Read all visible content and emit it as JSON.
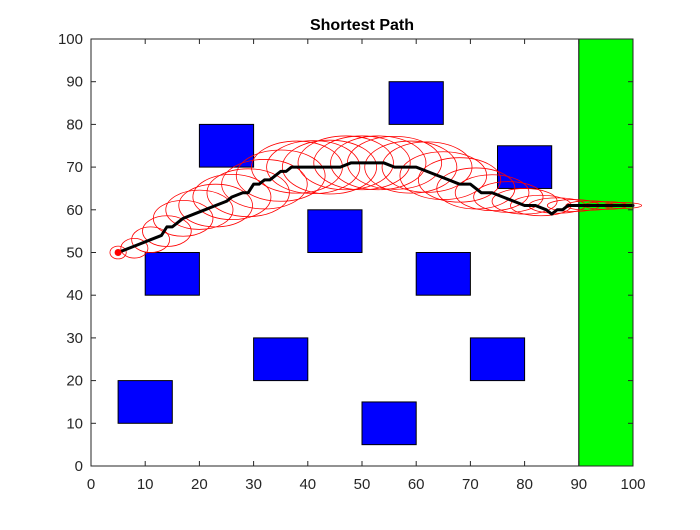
{
  "chart_data": {
    "type": "line",
    "title": "Shortest Path",
    "xlim": [
      0,
      100
    ],
    "ylim": [
      0,
      100
    ],
    "x_ticks": [
      "0",
      "10",
      "20",
      "30",
      "40",
      "50",
      "60",
      "70",
      "80",
      "90",
      "100"
    ],
    "y_ticks": [
      "0",
      "10",
      "20",
      "30",
      "40",
      "50",
      "60",
      "70",
      "80",
      "90",
      "100"
    ],
    "xlabel": "",
    "ylabel": "",
    "grid": false,
    "obstacles": [
      {
        "x": [
          10,
          20
        ],
        "y": [
          40,
          50
        ]
      },
      {
        "x": [
          5,
          15
        ],
        "y": [
          10,
          20
        ]
      },
      {
        "x": [
          20,
          30
        ],
        "y": [
          70,
          80
        ]
      },
      {
        "x": [
          30,
          40
        ],
        "y": [
          20,
          30
        ]
      },
      {
        "x": [
          40,
          50
        ],
        "y": [
          50,
          60
        ]
      },
      {
        "x": [
          50,
          60
        ],
        "y": [
          5,
          15
        ]
      },
      {
        "x": [
          55,
          65
        ],
        "y": [
          80,
          90
        ]
      },
      {
        "x": [
          60,
          70
        ],
        "y": [
          40,
          50
        ]
      },
      {
        "x": [
          70,
          80
        ],
        "y": [
          20,
          30
        ]
      },
      {
        "x": [
          75,
          85
        ],
        "y": [
          65,
          75
        ]
      }
    ],
    "goal_region": {
      "x": [
        90,
        100
      ],
      "y": [
        0,
        100
      ]
    },
    "start_point": {
      "x": 5,
      "y": 50
    },
    "path": {
      "x": [
        5,
        7,
        9,
        11,
        13,
        14,
        15,
        16,
        17,
        19,
        21,
        23,
        25,
        26,
        28,
        29,
        30,
        31,
        32,
        33,
        34,
        35,
        36,
        37,
        38,
        40,
        42,
        44,
        46,
        48,
        50,
        52,
        54,
        56,
        58,
        60,
        62,
        64,
        66,
        68,
        70,
        72,
        74,
        76,
        78,
        80,
        82,
        84,
        85,
        86,
        87,
        88,
        89,
        90,
        92,
        94,
        96,
        98,
        100
      ],
      "y": [
        50,
        51,
        52,
        53,
        54,
        56,
        56,
        57,
        58,
        59,
        60,
        61,
        62,
        63,
        64,
        64,
        66,
        66,
        67,
        67,
        68,
        69,
        69,
        70,
        70,
        70,
        70,
        70,
        70,
        71,
        71,
        71,
        71,
        70,
        70,
        70,
        69,
        68,
        67,
        66,
        66,
        64,
        64,
        63,
        62,
        61,
        61,
        60,
        59,
        60,
        60,
        61,
        61,
        61,
        61,
        61,
        61,
        61,
        61
      ]
    },
    "uncertainty_radius": {
      "x": [
        5,
        8,
        11,
        14,
        17,
        20,
        23,
        26,
        29,
        32,
        35,
        38,
        41,
        44,
        47,
        50,
        53,
        56,
        59,
        62,
        65,
        68,
        71,
        74,
        77,
        80,
        83,
        86,
        89,
        92,
        95,
        98
      ],
      "y": [
        50,
        51,
        53,
        55,
        58,
        60,
        61,
        63,
        64,
        66,
        68,
        70,
        70,
        70,
        71,
        71,
        71,
        71,
        70,
        70,
        68,
        67,
        65,
        64,
        63,
        62,
        61,
        61,
        61,
        61,
        61,
        61
      ],
      "rx": [
        1.5,
        2.5,
        3.5,
        4.5,
        5.5,
        6.2,
        6.8,
        7.2,
        7.6,
        7.9,
        8.2,
        8.4,
        8.6,
        8.7,
        8.8,
        8.9,
        8.8,
        8.7,
        8.5,
        8.3,
        8.0,
        7.6,
        7.2,
        6.8,
        6.4,
        6.0,
        5.6,
        5.2,
        4.8,
        4.4,
        4.0,
        3.6
      ],
      "ry": [
        1.5,
        2.3,
        3.0,
        3.6,
        4.2,
        4.6,
        5.0,
        5.3,
        5.6,
        5.8,
        6.0,
        6.1,
        6.2,
        6.3,
        6.3,
        6.3,
        6.3,
        6.2,
        6.1,
        5.9,
        5.6,
        5.2,
        4.8,
        4.2,
        3.6,
        3.0,
        2.4,
        1.8,
        1.4,
        1.1,
        0.9,
        0.7
      ]
    },
    "colors": {
      "obstacle": "#0000ff",
      "goal": "#00ff00",
      "path": "#000000",
      "uncertainty": "#ff0000",
      "start": "#ff0000"
    }
  }
}
